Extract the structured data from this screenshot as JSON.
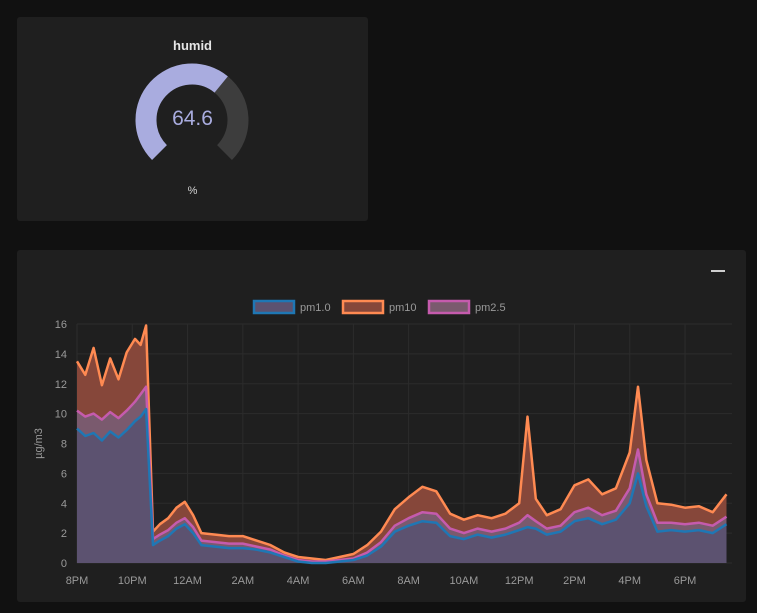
{
  "gauge": {
    "title": "humid",
    "value": "64.6",
    "unit": "%",
    "level": 0.646,
    "fill_color": "#a9acdf",
    "track_color": "#3d3d3d"
  },
  "chart_panel": {
    "minimize_icon": "minus-icon"
  },
  "chart_data": {
    "type": "area",
    "ylabel": "µg/m3",
    "xlabel": "",
    "ylim": [
      0,
      16
    ],
    "yticks": [
      "0",
      "2",
      "4",
      "6",
      "8",
      "10",
      "12",
      "14",
      "16"
    ],
    "x_tick_labels": [
      "8PM",
      "10PM",
      "12AM",
      "2AM",
      "4AM",
      "6AM",
      "8AM",
      "10AM",
      "12PM",
      "2PM",
      "4PM",
      "6PM"
    ],
    "x_hours": [
      0,
      2,
      4,
      6,
      8,
      10,
      12,
      14,
      16,
      18,
      20,
      22
    ],
    "grid": true,
    "legend_position": "top-center",
    "series": [
      {
        "name": "pm1.0",
        "color": "#1f77b4",
        "fill": "#5c5270",
        "points": [
          [
            0,
            9
          ],
          [
            0.3,
            8.5
          ],
          [
            0.6,
            8.7
          ],
          [
            0.9,
            8.2
          ],
          [
            1.2,
            8.8
          ],
          [
            1.5,
            8.4
          ],
          [
            1.8,
            8.9
          ],
          [
            2.1,
            9.5
          ],
          [
            2.3,
            9.8
          ],
          [
            2.5,
            10.3
          ],
          [
            2.75,
            1.2
          ],
          [
            3,
            1.5
          ],
          [
            3.3,
            1.8
          ],
          [
            3.6,
            2.3
          ],
          [
            3.9,
            2.6
          ],
          [
            4.2,
            2
          ],
          [
            4.5,
            1.2
          ],
          [
            5,
            1.1
          ],
          [
            5.5,
            1
          ],
          [
            6,
            1
          ],
          [
            6.5,
            0.9
          ],
          [
            7,
            0.7
          ],
          [
            7.5,
            0.4
          ],
          [
            8,
            0.1
          ],
          [
            8.5,
            0
          ],
          [
            9,
            0
          ],
          [
            9.5,
            0.1
          ],
          [
            10,
            0.2
          ],
          [
            10.5,
            0.5
          ],
          [
            11,
            1.1
          ],
          [
            11.5,
            2.1
          ],
          [
            12,
            2.5
          ],
          [
            12.5,
            2.8
          ],
          [
            13,
            2.7
          ],
          [
            13.5,
            1.8
          ],
          [
            14,
            1.6
          ],
          [
            14.5,
            1.9
          ],
          [
            15,
            1.7
          ],
          [
            15.5,
            1.9
          ],
          [
            16,
            2.2
          ],
          [
            16.3,
            2.4
          ],
          [
            16.6,
            2.3
          ],
          [
            17,
            1.9
          ],
          [
            17.5,
            2.1
          ],
          [
            18,
            2.8
          ],
          [
            18.5,
            3
          ],
          [
            19,
            2.6
          ],
          [
            19.5,
            2.9
          ],
          [
            20,
            4
          ],
          [
            20.3,
            6
          ],
          [
            20.6,
            3.8
          ],
          [
            21,
            2.1
          ],
          [
            21.5,
            2.2
          ],
          [
            22,
            2.1
          ],
          [
            22.5,
            2.2
          ],
          [
            23,
            2
          ],
          [
            23.5,
            2.6
          ]
        ]
      },
      {
        "name": "pm2.5",
        "color": "#c55bad",
        "fill": "#7a5a6e",
        "points": [
          [
            0,
            10.2
          ],
          [
            0.3,
            9.8
          ],
          [
            0.6,
            10
          ],
          [
            0.9,
            9.6
          ],
          [
            1.2,
            10.1
          ],
          [
            1.5,
            9.7
          ],
          [
            1.8,
            10.2
          ],
          [
            2.1,
            10.8
          ],
          [
            2.3,
            11.3
          ],
          [
            2.5,
            11.8
          ],
          [
            2.75,
            1.6
          ],
          [
            3,
            1.9
          ],
          [
            3.3,
            2.2
          ],
          [
            3.6,
            2.7
          ],
          [
            3.9,
            3
          ],
          [
            4.2,
            2.4
          ],
          [
            4.5,
            1.5
          ],
          [
            5,
            1.4
          ],
          [
            5.5,
            1.3
          ],
          [
            6,
            1.3
          ],
          [
            6.5,
            1.1
          ],
          [
            7,
            0.9
          ],
          [
            7.5,
            0.5
          ],
          [
            8,
            0.2
          ],
          [
            8.5,
            0.1
          ],
          [
            9,
            0.1
          ],
          [
            9.5,
            0.2
          ],
          [
            10,
            0.3
          ],
          [
            10.5,
            0.7
          ],
          [
            11,
            1.4
          ],
          [
            11.5,
            2.5
          ],
          [
            12,
            3
          ],
          [
            12.5,
            3.4
          ],
          [
            13,
            3.3
          ],
          [
            13.5,
            2.3
          ],
          [
            14,
            2
          ],
          [
            14.5,
            2.3
          ],
          [
            15,
            2.1
          ],
          [
            15.5,
            2.3
          ],
          [
            16,
            2.7
          ],
          [
            16.3,
            3.2
          ],
          [
            16.6,
            2.8
          ],
          [
            17,
            2.3
          ],
          [
            17.5,
            2.5
          ],
          [
            18,
            3.4
          ],
          [
            18.5,
            3.7
          ],
          [
            19,
            3.2
          ],
          [
            19.5,
            3.5
          ],
          [
            20,
            5
          ],
          [
            20.3,
            7.6
          ],
          [
            20.6,
            4.6
          ],
          [
            21,
            2.7
          ],
          [
            21.5,
            2.7
          ],
          [
            22,
            2.6
          ],
          [
            22.5,
            2.7
          ],
          [
            23,
            2.5
          ],
          [
            23.5,
            3.1
          ]
        ]
      },
      {
        "name": "pm10",
        "color": "#ff8a52",
        "fill": "#86473a",
        "points": [
          [
            0,
            13.5
          ],
          [
            0.3,
            12.6
          ],
          [
            0.6,
            14.4
          ],
          [
            0.9,
            11.9
          ],
          [
            1.2,
            13.7
          ],
          [
            1.5,
            12.3
          ],
          [
            1.8,
            14.1
          ],
          [
            2.1,
            15
          ],
          [
            2.3,
            14.6
          ],
          [
            2.5,
            15.9
          ],
          [
            2.75,
            2.1
          ],
          [
            3,
            2.6
          ],
          [
            3.3,
            3
          ],
          [
            3.6,
            3.7
          ],
          [
            3.9,
            4.1
          ],
          [
            4.2,
            3.2
          ],
          [
            4.5,
            2
          ],
          [
            5,
            1.9
          ],
          [
            5.5,
            1.8
          ],
          [
            6,
            1.8
          ],
          [
            6.5,
            1.5
          ],
          [
            7,
            1.2
          ],
          [
            7.5,
            0.7
          ],
          [
            8,
            0.4
          ],
          [
            8.5,
            0.3
          ],
          [
            9,
            0.2
          ],
          [
            9.5,
            0.4
          ],
          [
            10,
            0.6
          ],
          [
            10.5,
            1.2
          ],
          [
            11,
            2.1
          ],
          [
            11.5,
            3.6
          ],
          [
            12,
            4.4
          ],
          [
            12.5,
            5.1
          ],
          [
            13,
            4.8
          ],
          [
            13.5,
            3.3
          ],
          [
            14,
            2.9
          ],
          [
            14.5,
            3.2
          ],
          [
            15,
            3
          ],
          [
            15.5,
            3.3
          ],
          [
            16,
            4
          ],
          [
            16.3,
            9.8
          ],
          [
            16.6,
            4.3
          ],
          [
            17,
            3.2
          ],
          [
            17.5,
            3.6
          ],
          [
            18,
            5.2
          ],
          [
            18.5,
            5.6
          ],
          [
            19,
            4.6
          ],
          [
            19.5,
            5
          ],
          [
            20,
            7.4
          ],
          [
            20.3,
            11.8
          ],
          [
            20.6,
            6.9
          ],
          [
            21,
            4
          ],
          [
            21.5,
            3.9
          ],
          [
            22,
            3.7
          ],
          [
            22.5,
            3.8
          ],
          [
            23,
            3.4
          ],
          [
            23.5,
            4.6
          ]
        ]
      }
    ]
  }
}
